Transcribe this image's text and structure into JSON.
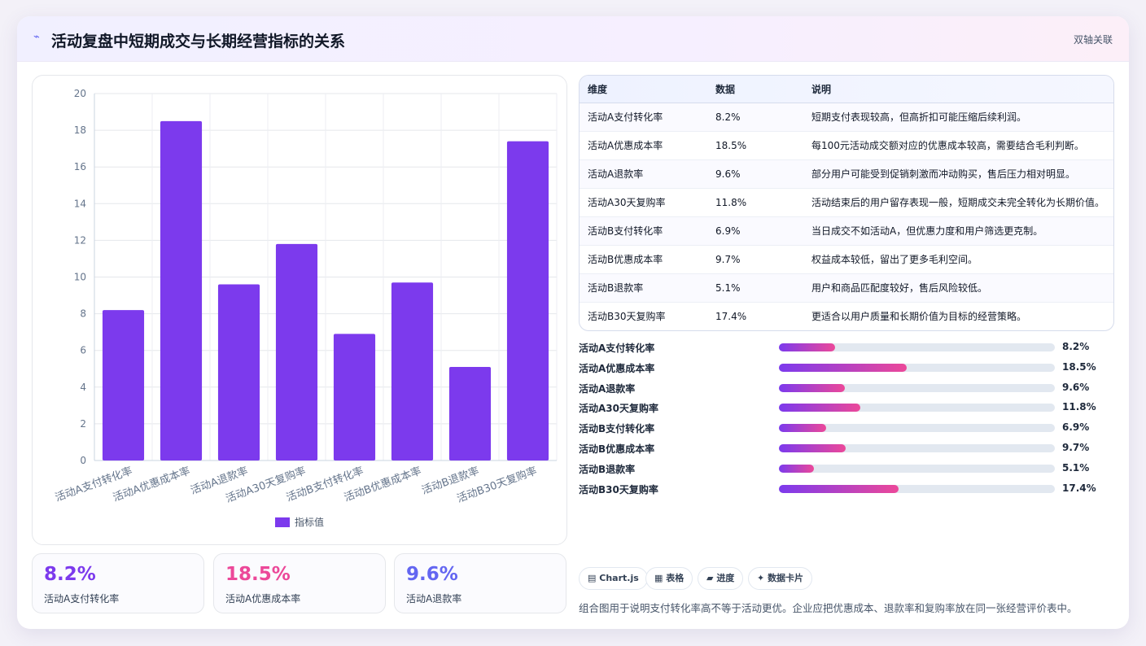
{
  "header": {
    "title": "活动复盘中短期成交与长期经营指标的关系",
    "tag": "双轴关联"
  },
  "chart_data": {
    "type": "bar",
    "categories": [
      "活动A支付转化率",
      "活动A优惠成本率",
      "活动A退款率",
      "活动A30天复购率",
      "活动B支付转化率",
      "活动B优惠成本率",
      "活动B退款率",
      "活动B30天复购率"
    ],
    "series": [
      {
        "name": "指标值",
        "values": [
          8.2,
          18.5,
          9.6,
          11.8,
          6.9,
          9.7,
          5.1,
          17.4
        ],
        "color": "#7c3aed"
      }
    ],
    "ylim": [
      0,
      20
    ],
    "yticks": [
      0,
      2,
      4,
      6,
      8,
      10,
      12,
      14,
      16,
      18,
      20
    ],
    "grid": true,
    "legend": "bottom"
  },
  "kpis": [
    {
      "value": "8.2%",
      "label": "活动A支付转化率",
      "color": "#7c3aed"
    },
    {
      "value": "18.5%",
      "label": "活动A优惠成本率",
      "color": "#ec4899"
    },
    {
      "value": "9.6%",
      "label": "活动A退款率",
      "color": "#6366f1"
    }
  ],
  "table": {
    "headers": [
      "维度",
      "数据",
      "说明"
    ],
    "rows": [
      [
        "活动A支付转化率",
        "8.2%",
        "短期支付表现较高，但高折扣可能压缩后续利润。"
      ],
      [
        "活动A优惠成本率",
        "18.5%",
        "每100元活动成交额对应的优惠成本较高，需要结合毛利判断。"
      ],
      [
        "活动A退款率",
        "9.6%",
        "部分用户可能受到促销刺激而冲动购买，售后压力相对明显。"
      ],
      [
        "活动A30天复购率",
        "11.8%",
        "活动结束后的用户留存表现一般，短期成交未完全转化为长期价值。"
      ],
      [
        "活动B支付转化率",
        "6.9%",
        "当日成交不如活动A，但优惠力度和用户筛选更克制。"
      ],
      [
        "活动B优惠成本率",
        "9.7%",
        "权益成本较低，留出了更多毛利空间。"
      ],
      [
        "活动B退款率",
        "5.1%",
        "用户和商品匹配度较好，售后风险较低。"
      ],
      [
        "活动B30天复购率",
        "17.4%",
        "更适合以用户质量和长期价值为目标的经营策略。"
      ]
    ]
  },
  "progress": [
    {
      "label": "活动A支付转化率",
      "value": 8.2,
      "text": "8.2%"
    },
    {
      "label": "活动A优惠成本率",
      "value": 18.5,
      "text": "18.5%"
    },
    {
      "label": "活动A退款率",
      "value": 9.6,
      "text": "9.6%"
    },
    {
      "label": "活动A30天复购率",
      "value": 11.8,
      "text": "11.8%"
    },
    {
      "label": "活动B支付转化率",
      "value": 6.9,
      "text": "6.9%"
    },
    {
      "label": "活动B优惠成本率",
      "value": 9.7,
      "text": "9.7%"
    },
    {
      "label": "活动B退款率",
      "value": 5.1,
      "text": "5.1%"
    },
    {
      "label": "活动B30天复购率",
      "value": 17.4,
      "text": "17.4%"
    }
  ],
  "progress_max": 40,
  "chips": [
    "Chart.js",
    "表格",
    "进度",
    "数据卡片"
  ],
  "chip_icons": [
    "chart-icon",
    "table-icon",
    "progress-icon",
    "card-icon"
  ],
  "note": "组合图用于说明支付转化率高不等于活动更优。企业应把优惠成本、退款率和复购率放在同一张经营评价表中。"
}
